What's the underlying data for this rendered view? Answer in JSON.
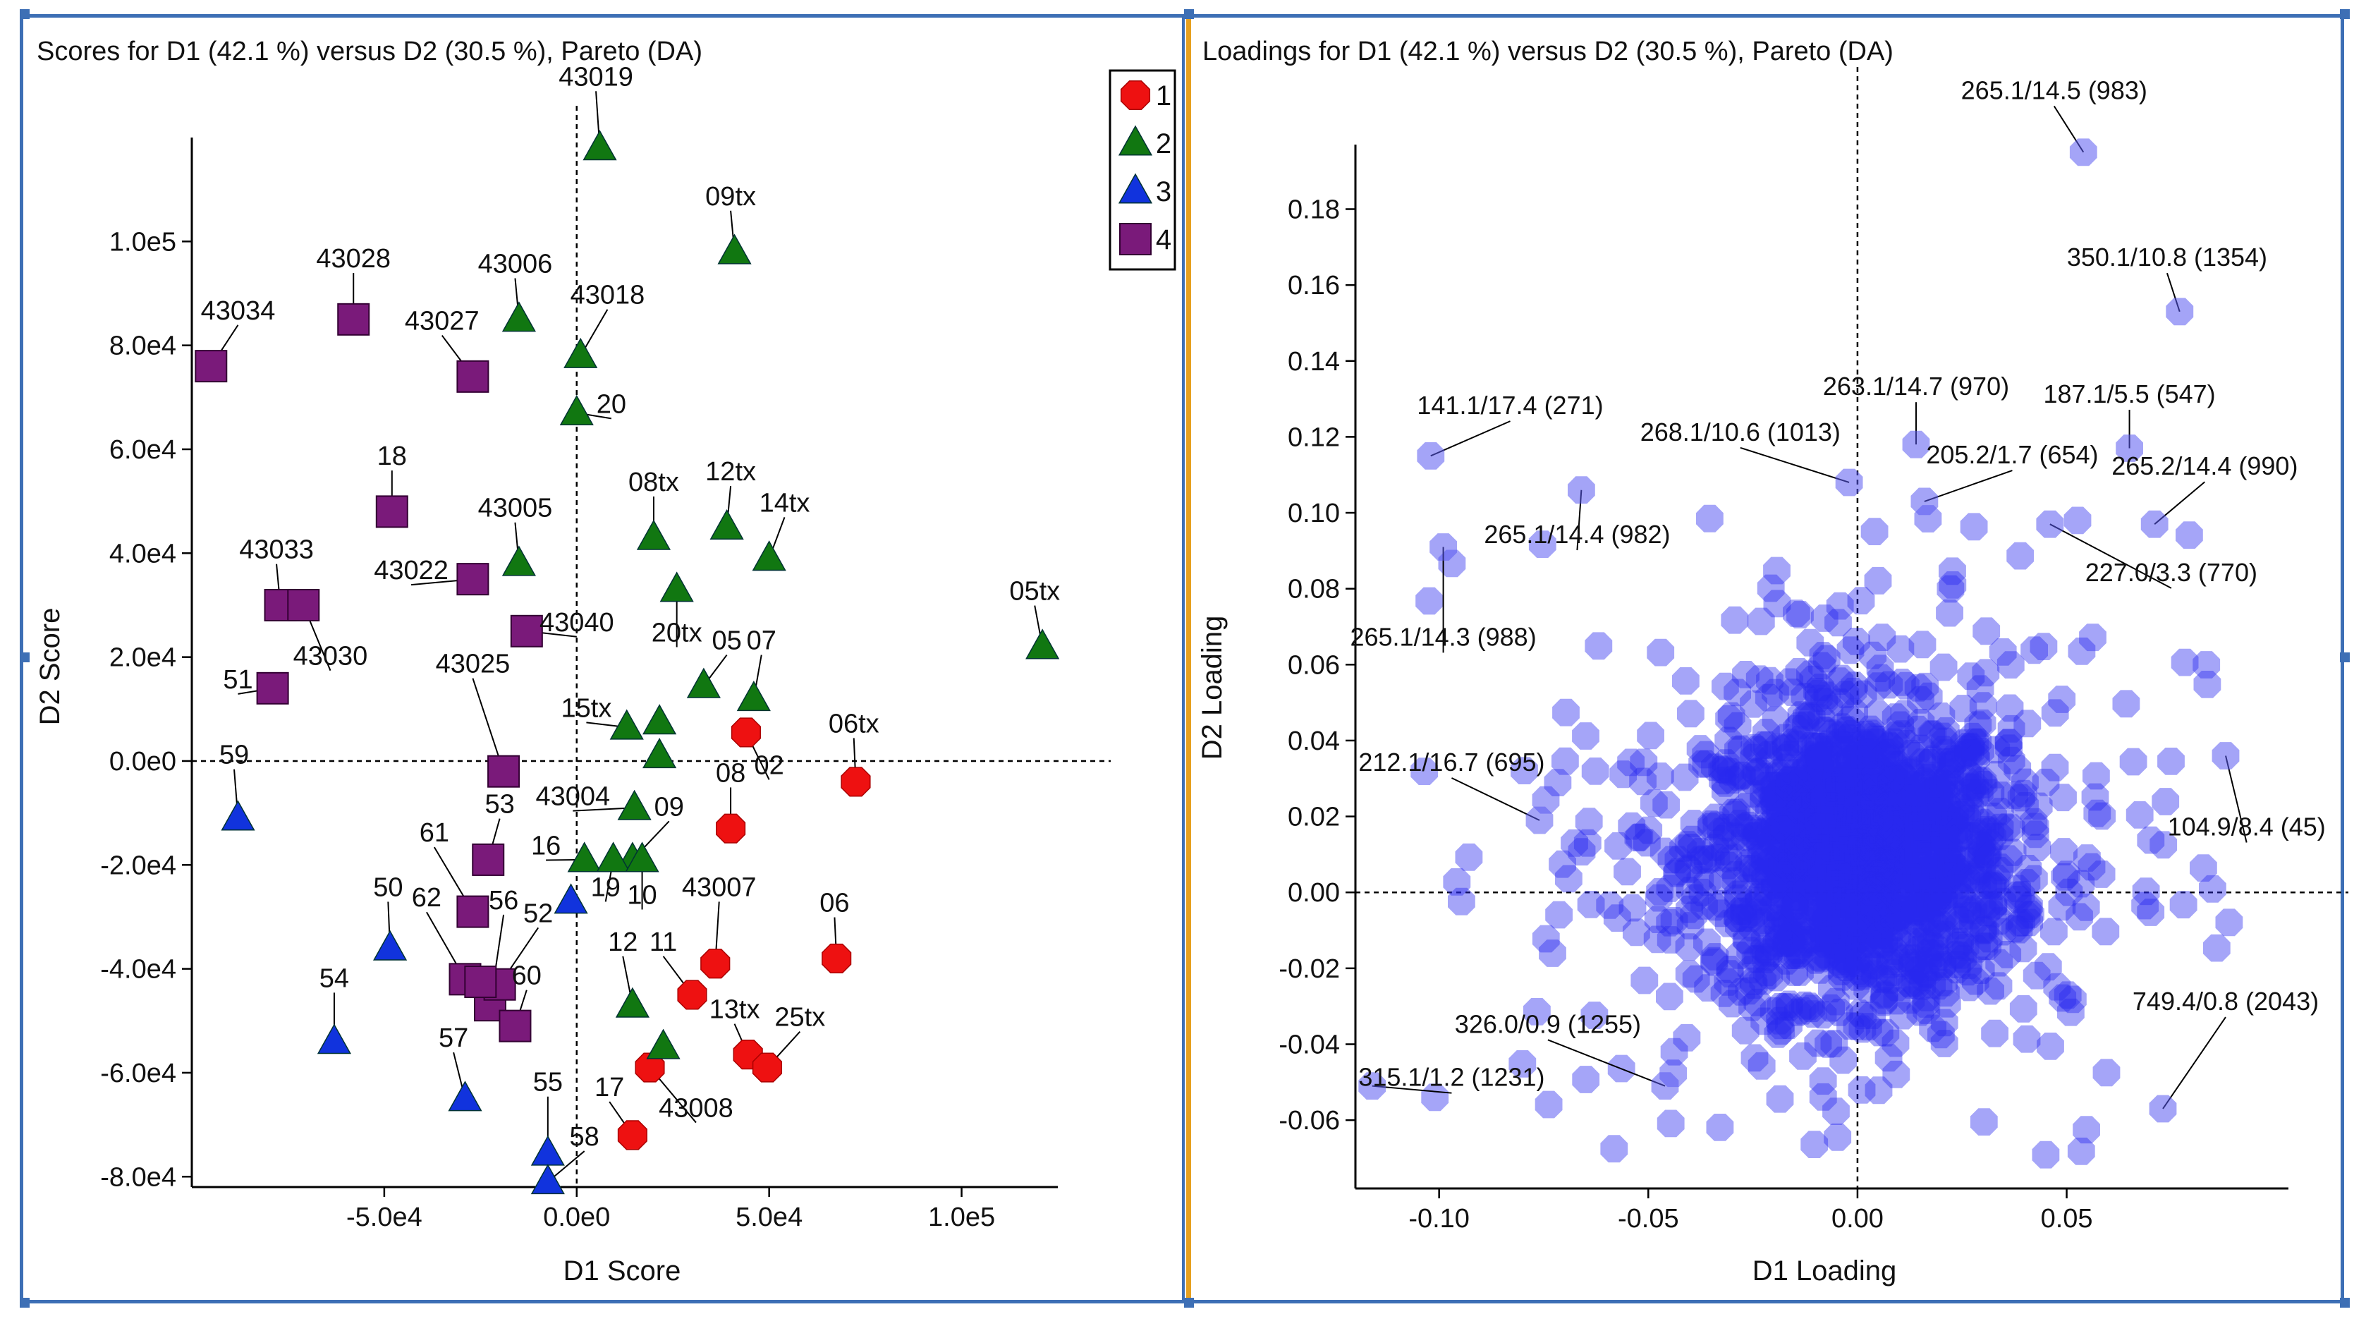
{
  "chart_data": [
    {
      "type": "scatter",
      "title": "Scores for D1 (42.1 %) versus D2 (30.5 %), Pareto (DA)",
      "xlabel": "D1 Score",
      "ylabel": "D2 Score",
      "xlim": [
        -100000,
        125000
      ],
      "ylim": [
        -82000,
        120000
      ],
      "xticks": [
        -50000,
        0,
        50000,
        100000
      ],
      "xtick_labels": [
        "-5.0e4",
        "0.0e0",
        "5.0e4",
        "1.0e5"
      ],
      "yticks": [
        -80000,
        -60000,
        -40000,
        -20000,
        0,
        20000,
        40000,
        60000,
        80000,
        100000
      ],
      "ytick_labels": [
        "-8.0e4",
        "-6.0e4",
        "-4.0e4",
        "-2.0e4",
        "0.0e0",
        "2.0e4",
        "4.0e4",
        "6.0e4",
        "8.0e4",
        "1.0e5"
      ],
      "legend_position": "top-right",
      "legend": [
        {
          "label": "1",
          "color": "#ee1111",
          "shape": "octagon"
        },
        {
          "label": "2",
          "color": "#117711",
          "shape": "triangle"
        },
        {
          "label": "3",
          "color": "#1133dd",
          "shape": "triangle"
        },
        {
          "label": "4",
          "color": "#7a1a7a",
          "shape": "square"
        }
      ],
      "series": [
        {
          "name": "1",
          "points": [
            {
              "label": "02",
              "x": 44000,
              "y": 5500,
              "lx": 50000,
              "ly": -2500
            },
            {
              "label": "06tx",
              "x": 72500,
              "y": -4000,
              "lx": 72000,
              "ly": 5500
            },
            {
              "label": "08",
              "x": 40000,
              "y": -13000,
              "lx": 40000,
              "ly": -4000
            },
            {
              "label": "06",
              "x": 67500,
              "y": -38000,
              "lx": 67000,
              "ly": -29000
            },
            {
              "label": "43007",
              "x": 36000,
              "y": -39000,
              "lx": 37000,
              "ly": -26000
            },
            {
              "label": "11",
              "x": 30000,
              "y": -45000,
              "lx": 22500,
              "ly": -36500
            },
            {
              "label": "13tx",
              "x": 44500,
              "y": -56500,
              "lx": 41000,
              "ly": -49500
            },
            {
              "label": "25tx",
              "x": 49500,
              "y": -59000,
              "lx": 58000,
              "ly": -51000
            },
            {
              "label": "43008",
              "x": 19000,
              "y": -59000,
              "lx": 31000,
              "ly": -68500
            },
            {
              "label": "17",
              "x": 14500,
              "y": -72000,
              "lx": 8500,
              "ly": -64500
            }
          ]
        },
        {
          "name": "2",
          "points": [
            {
              "label": "43019",
              "x": 6000,
              "y": 118000,
              "lx": 5000,
              "ly": 130000
            },
            {
              "label": "09tx",
              "x": 41000,
              "y": 98000,
              "lx": 40000,
              "ly": 107000
            },
            {
              "label": "43006",
              "x": -15000,
              "y": 85000,
              "lx": -16000,
              "ly": 94000
            },
            {
              "label": "43018",
              "x": 1000,
              "y": 78000,
              "lx": 8000,
              "ly": 88000
            },
            {
              "label": "20",
              "x": 0,
              "y": 67000,
              "lx": 9000,
              "ly": 67000
            },
            {
              "label": "08tx",
              "x": 20000,
              "y": 43000,
              "lx": 20000,
              "ly": 52000
            },
            {
              "label": "12tx",
              "x": 39000,
              "y": 45000,
              "lx": 40000,
              "ly": 54000
            },
            {
              "label": "14tx",
              "x": 50000,
              "y": 39000,
              "lx": 54000,
              "ly": 48000
            },
            {
              "label": "43005",
              "x": -15000,
              "y": 38000,
              "lx": -16000,
              "ly": 47000
            },
            {
              "label": "20tx",
              "x": 26000,
              "y": 33000,
              "lx": 26000,
              "ly": 23000
            },
            {
              "label": "05",
              "x": 33000,
              "y": 14500,
              "lx": 39000,
              "ly": 21500
            },
            {
              "label": "07",
              "x": 46000,
              "y": 12000,
              "lx": 48000,
              "ly": 21500
            },
            {
              "label": "05tx",
              "x": 121000,
              "y": 22000,
              "lx": 119000,
              "ly": 31000
            },
            {
              "label": "15tx",
              "x": 13000,
              "y": 6500,
              "lx": 2500,
              "ly": 8500
            },
            {
              "label": "",
              "x": 21500,
              "y": 7500,
              "lx": null,
              "ly": null
            },
            {
              "label": "",
              "x": 21500,
              "y": 1000,
              "lx": null,
              "ly": null
            },
            {
              "label": "43004",
              "x": 15000,
              "y": -9000,
              "lx": -1000,
              "ly": -8500
            },
            {
              "label": "09",
              "x": 14500,
              "y": -19000,
              "lx": 24000,
              "ly": -10500
            },
            {
              "label": "16",
              "x": 2000,
              "y": -19000,
              "lx": -8000,
              "ly": -18000
            },
            {
              "label": "19",
              "x": 9500,
              "y": -19000,
              "lx": 7500,
              "ly": -26000
            },
            {
              "label": "10",
              "x": 17000,
              "y": -19000,
              "lx": 17000,
              "ly": -27500
            },
            {
              "label": "12",
              "x": 14500,
              "y": -47000,
              "lx": 12000,
              "ly": -36500
            },
            {
              "label": "",
              "x": 22500,
              "y": -55000,
              "lx": null,
              "ly": null
            }
          ]
        },
        {
          "name": "3",
          "points": [
            {
              "label": "59",
              "x": -88000,
              "y": -11000,
              "lx": -89000,
              "ly": -500
            },
            {
              "label": "16",
              "x": -1500,
              "y": -27000,
              "lx": null,
              "ly": null
            },
            {
              "label": "50",
              "x": -48500,
              "y": -36000,
              "lx": -49000,
              "ly": -26000
            },
            {
              "label": "54",
              "x": -63000,
              "y": -54000,
              "lx": -63000,
              "ly": -43500
            },
            {
              "label": "57",
              "x": -29000,
              "y": -65000,
              "lx": -32000,
              "ly": -55000
            },
            {
              "label": "55",
              "x": -7500,
              "y": -75500,
              "lx": -7500,
              "ly": -63500
            },
            {
              "label": "58",
              "x": -7500,
              "y": -81000,
              "lx": 2000,
              "ly": -74000
            }
          ]
        },
        {
          "name": "4",
          "points": [
            {
              "label": "43034",
              "x": -95000,
              "y": 76000,
              "lx": -88000,
              "ly": 85000
            },
            {
              "label": "43028",
              "x": -58000,
              "y": 85000,
              "lx": -58000,
              "ly": 95000
            },
            {
              "label": "43027",
              "x": -27000,
              "y": 74000,
              "lx": -35000,
              "ly": 83000
            },
            {
              "label": "18",
              "x": -48000,
              "y": 48000,
              "lx": -48000,
              "ly": 57000
            },
            {
              "label": "43022",
              "x": -27000,
              "y": 35000,
              "lx": -43000,
              "ly": 35000
            },
            {
              "label": "43033",
              "x": -77000,
              "y": 30000,
              "lx": -78000,
              "ly": 39000
            },
            {
              "label": "43030",
              "x": -71000,
              "y": 30000,
              "lx": -64000,
              "ly": 18500
            },
            {
              "label": "43040",
              "x": -13000,
              "y": 25000,
              "lx": 0,
              "ly": 25000
            },
            {
              "label": "51",
              "x": -79000,
              "y": 14000,
              "lx": -88000,
              "ly": 14000
            },
            {
              "label": "43025",
              "x": -19000,
              "y": -2000,
              "lx": -27000,
              "ly": 17000
            },
            {
              "label": "53",
              "x": -23000,
              "y": -19000,
              "lx": -20000,
              "ly": -10000
            },
            {
              "label": "61",
              "x": -27000,
              "y": -29000,
              "lx": -37000,
              "ly": -15500
            },
            {
              "label": "62",
              "x": -29000,
              "y": -42000,
              "lx": -39000,
              "ly": -28000
            },
            {
              "label": "56",
              "x": -22500,
              "y": -47000,
              "lx": -19000,
              "ly": -28500
            },
            {
              "label": "52",
              "x": -20000,
              "y": -43000,
              "lx": -10000,
              "ly": -31000
            },
            {
              "label": "60",
              "x": -16000,
              "y": -51000,
              "lx": -13000,
              "ly": -43000
            },
            {
              "label": "",
              "x": -25000,
              "y": -42500,
              "lx": null,
              "ly": null
            }
          ]
        }
      ]
    },
    {
      "type": "scatter",
      "title": "Loadings for D1 (42.1 %) versus D2 (30.5 %), Pareto (DA)",
      "xlabel": "D1 Loading",
      "ylabel": "D2 Loading",
      "xlim": [
        -0.12,
        0.103
      ],
      "ylim": [
        -0.078,
        0.197
      ],
      "xticks": [
        -0.1,
        -0.05,
        0.0,
        0.05
      ],
      "xtick_labels": [
        "-0.10",
        "-0.05",
        "0.00",
        "0.05"
      ],
      "yticks": [
        -0.06,
        -0.04,
        -0.02,
        0.0,
        0.02,
        0.04,
        0.06,
        0.08,
        0.1,
        0.12,
        0.14,
        0.16,
        0.18
      ],
      "ytick_labels": [
        "-0.06",
        "-0.04",
        "-0.02",
        "0.00",
        "0.02",
        "0.04",
        "0.06",
        "0.08",
        "0.10",
        "0.12",
        "0.14",
        "0.16",
        "0.18"
      ],
      "point_color": "#2222ee",
      "cloud_center": [
        0.0,
        0.01
      ],
      "cloud_count": 1800,
      "labeled_points": [
        {
          "label": "265.1/14.5 (983)",
          "x": 0.054,
          "y": 0.195,
          "lx": 0.047,
          "ly": 0.209
        },
        {
          "label": "350.1/10.8 (1354)",
          "x": 0.077,
          "y": 0.153,
          "lx": 0.074,
          "ly": 0.165
        },
        {
          "label": "141.1/17.4 (271)",
          "x": -0.102,
          "y": 0.115,
          "lx": -0.083,
          "ly": 0.126
        },
        {
          "label": "263.1/14.7 (970)",
          "x": 0.014,
          "y": 0.118,
          "lx": 0.014,
          "ly": 0.131
        },
        {
          "label": "187.1/5.5 (547)",
          "x": 0.065,
          "y": 0.117,
          "lx": 0.065,
          "ly": 0.129
        },
        {
          "label": "268.1/10.6 (1013)",
          "x": -0.002,
          "y": 0.108,
          "lx": -0.028,
          "ly": 0.119
        },
        {
          "label": "205.2/1.7 (654)",
          "x": 0.016,
          "y": 0.103,
          "lx": 0.037,
          "ly": 0.113
        },
        {
          "label": "265.2/14.4 (990)",
          "x": 0.071,
          "y": 0.097,
          "lx": 0.083,
          "ly": 0.11
        },
        {
          "label": "265.1/14.4 (982)",
          "x": -0.066,
          "y": 0.106,
          "lx": -0.067,
          "ly": 0.092
        },
        {
          "label": "227.0/3.3 (770)",
          "x": 0.046,
          "y": 0.097,
          "lx": 0.075,
          "ly": 0.082
        },
        {
          "label": "265.1/14.3 (988)",
          "x": -0.099,
          "y": 0.091,
          "lx": -0.099,
          "ly": 0.065
        },
        {
          "label": "212.1/16.7 (695)",
          "x": -0.076,
          "y": 0.019,
          "lx": -0.097,
          "ly": 0.032
        },
        {
          "label": "104.9/8.4 (45)",
          "x": 0.088,
          "y": 0.036,
          "lx": 0.093,
          "ly": 0.015
        },
        {
          "label": "326.0/0.9 (1255)",
          "x": -0.046,
          "y": -0.051,
          "lx": -0.074,
          "ly": -0.037
        },
        {
          "label": "315.1/1.2 (1231)",
          "x": -0.116,
          "y": -0.051,
          "lx": -0.097,
          "ly": -0.051
        },
        {
          "label": "749.4/0.8 (2043)",
          "x": 0.073,
          "y": -0.057,
          "lx": 0.088,
          "ly": -0.031
        }
      ]
    }
  ]
}
